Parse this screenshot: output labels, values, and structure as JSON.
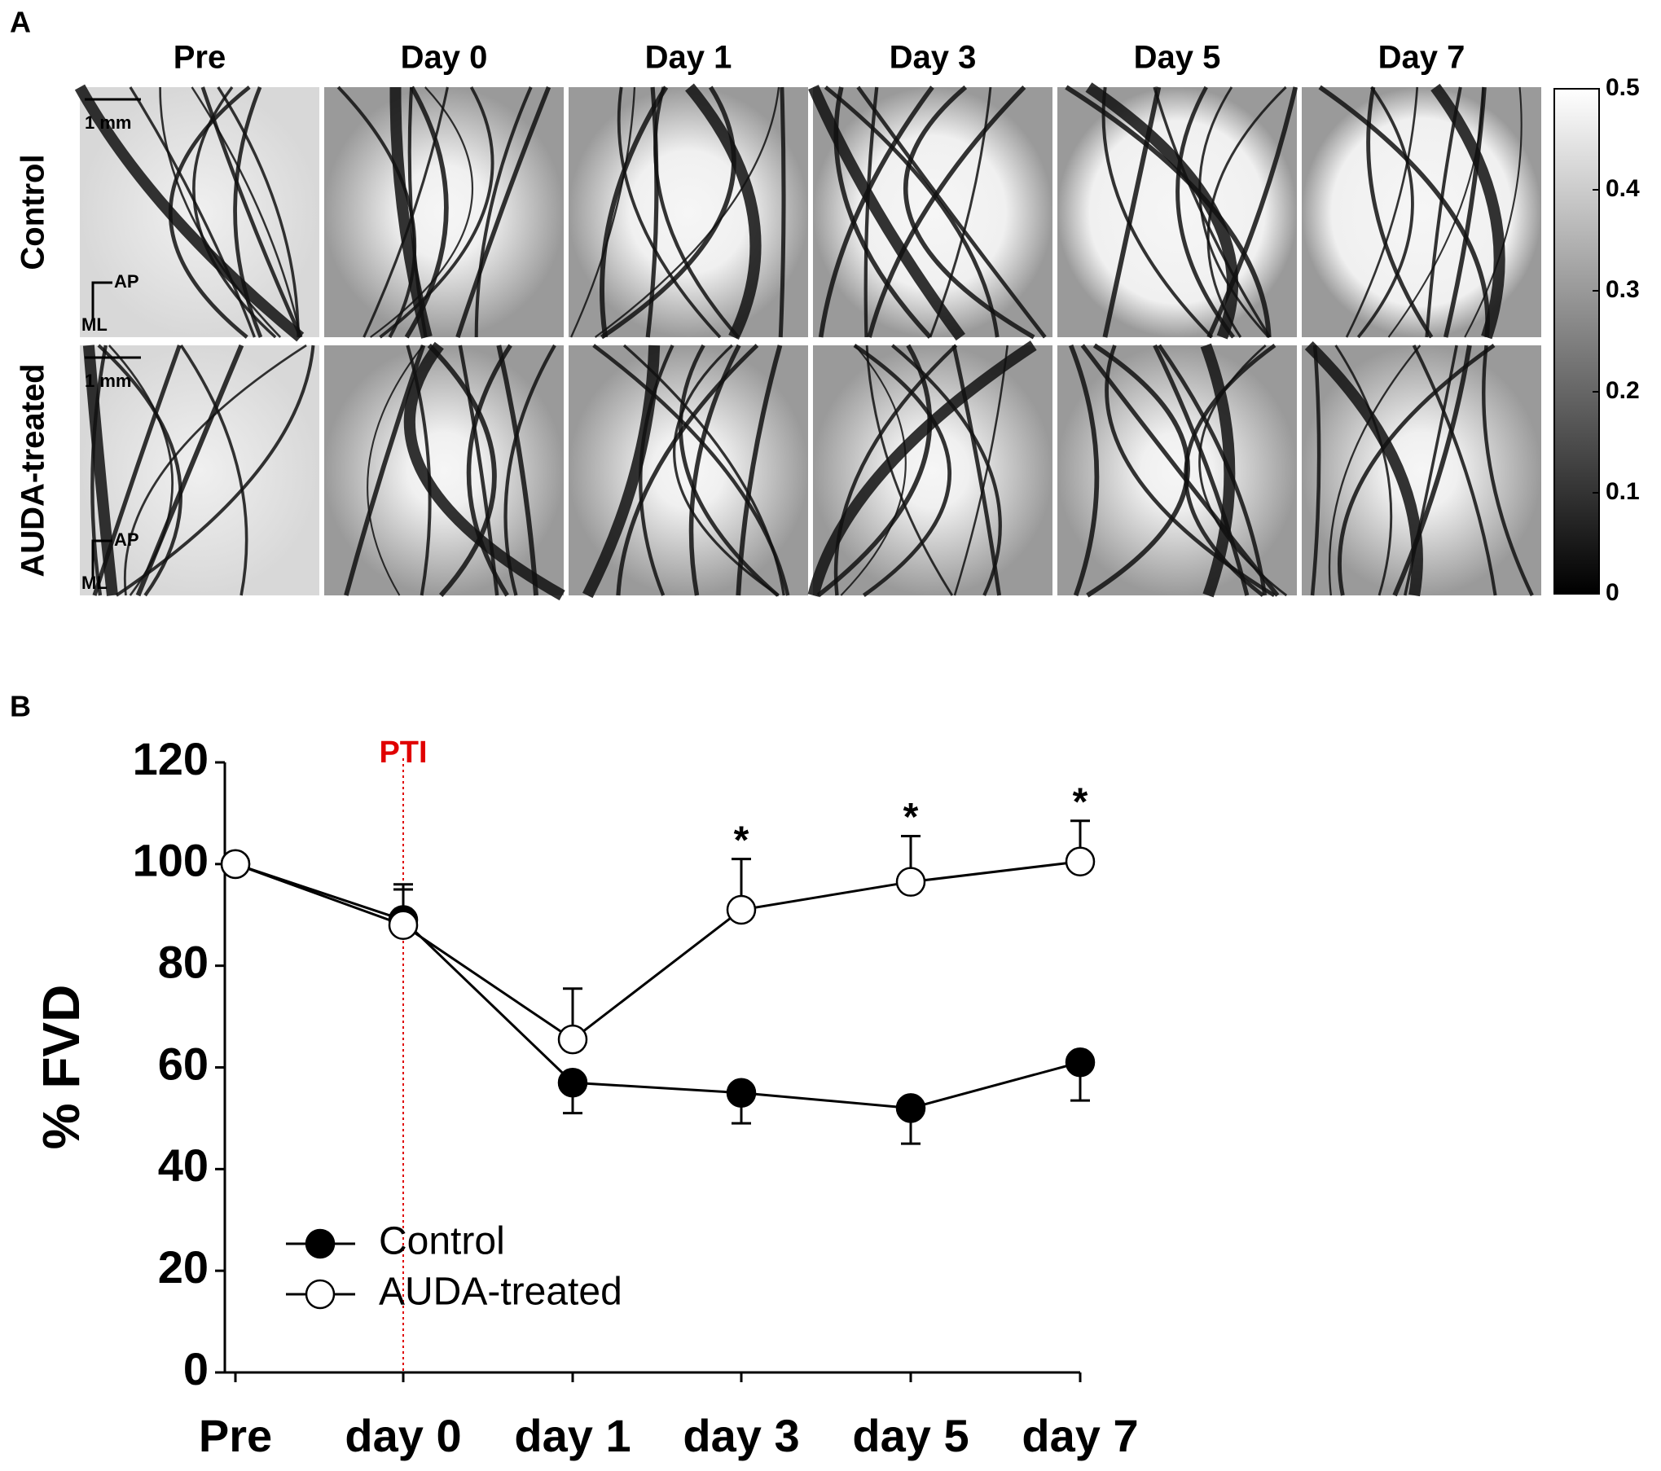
{
  "panel_a": {
    "label": "A",
    "columns": [
      "Pre",
      "Day 0",
      "Day 1",
      "Day 3",
      "Day 5",
      "Day 7"
    ],
    "rows": [
      "Control",
      "AUDA-treated"
    ],
    "scale_bar": "1 mm",
    "axis_ap": "AP",
    "axis_ml": "ML",
    "colorbar": {
      "lim": [
        0,
        0.5
      ],
      "ticks": [
        0,
        0.1,
        0.2,
        0.3,
        0.4,
        0.5
      ]
    }
  },
  "chart_data": {
    "type": "line",
    "panel_label": "B",
    "ylabel": "% FVD",
    "categories": [
      "Pre",
      "day 0",
      "day 1",
      "day 3",
      "day 5",
      "day 7"
    ],
    "series": [
      {
        "name": "Control",
        "color": "#000000",
        "marker_fill": "#000000",
        "values": [
          100,
          89,
          57,
          55,
          52,
          61
        ],
        "errors": [
          0,
          7,
          6,
          6,
          7,
          7.5
        ]
      },
      {
        "name": "AUDA-treated",
        "color": "#000000",
        "marker_fill": "#ffffff",
        "values": [
          100,
          88,
          65.5,
          91,
          96.5,
          100.5
        ],
        "errors": [
          0,
          7,
          10,
          10,
          9,
          8
        ]
      }
    ],
    "ylim": [
      0,
      120
    ],
    "yticks": [
      0,
      20,
      40,
      60,
      80,
      100,
      120
    ],
    "reference_line": {
      "label": "PTI",
      "category_index": 1,
      "color": "#e00000"
    },
    "significance_marker": "*",
    "significant": [
      false,
      false,
      false,
      true,
      true,
      true
    ],
    "legend": "lower left"
  }
}
